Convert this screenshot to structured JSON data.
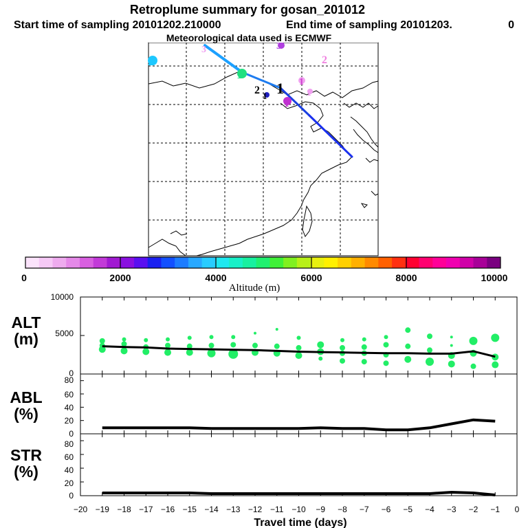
{
  "header": {
    "title": "Retroplume summary for gosan_201012",
    "start_label": "Start time of sampling 20101202.210000",
    "end_label": "End time of sampling 20101203.",
    "end_suffix": "0",
    "met_label": "Meteorological data used is ECMWF"
  },
  "colorbar": {
    "label": "Altitude (m)",
    "ticks": [
      "0",
      "2000",
      "4000",
      "6000",
      "8000",
      "10000"
    ],
    "colors": [
      "#fbe3fb",
      "#f6c9f6",
      "#eeabee",
      "#e589e8",
      "#d85fe0",
      "#c23ad8",
      "#a11ad2",
      "#8a10e0",
      "#5a10f0",
      "#1a20f0",
      "#1250ff",
      "#1c7cff",
      "#28a8ff",
      "#28ccff",
      "#1ee8f0",
      "#18f0c8",
      "#18f0a0",
      "#20f070",
      "#40f038",
      "#80f020",
      "#b8f018",
      "#e8f010",
      "#fff000",
      "#ffd000",
      "#ffb000",
      "#ff8a00",
      "#ff6000",
      "#ff3010",
      "#ff0030",
      "#ff0070",
      "#ff0098",
      "#f000b0",
      "#d000a8",
      "#a80098",
      "#7a0080"
    ]
  },
  "map": {
    "labels": [
      {
        "text": "2",
        "color": "#1ec8ff"
      },
      {
        "text": "3",
        "color": "#b040e0"
      },
      {
        "text": "3",
        "color": "#f0a0f0"
      },
      {
        "text": "2",
        "color": "#f080e0"
      },
      {
        "text": "1",
        "color": "#20e080"
      },
      {
        "text": "2",
        "color": "#000000"
      },
      {
        "text": "1",
        "color": "#000000"
      },
      {
        "text": "1",
        "color": "#c030d0"
      },
      {
        "text": "1",
        "color": "#f0a0f0"
      },
      {
        "text": "1",
        "color": "#d040d0"
      },
      {
        "text": "1",
        "color": "#000000"
      }
    ]
  },
  "chart_data": [
    {
      "type": "scatter",
      "name": "ALT",
      "ylabel_top": "ALT",
      "ylabel_unit": "(m)",
      "ylim": [
        0,
        10000
      ],
      "yticks": [
        "10000",
        "5000",
        "0"
      ],
      "line_color": "#000000",
      "dot_color": "#22ee66",
      "line": {
        "x": [
          -19,
          -18,
          -17,
          -16,
          -15,
          -14,
          -13,
          -12,
          -11,
          -10,
          -9,
          -8,
          -7,
          -6,
          -5,
          -4,
          -3,
          -2,
          -1
        ],
        "y": [
          3600,
          3500,
          3450,
          3300,
          3250,
          3200,
          3150,
          3100,
          3000,
          2900,
          2850,
          2800,
          2750,
          2700,
          2700,
          2650,
          2650,
          2950,
          2250
        ]
      },
      "points": [
        [
          -19,
          4300,
          4
        ],
        [
          -19,
          3700,
          4
        ],
        [
          -19,
          3200,
          5
        ],
        [
          -18,
          4500,
          3
        ],
        [
          -18,
          3900,
          4
        ],
        [
          -18,
          3000,
          5
        ],
        [
          -17,
          4400,
          3
        ],
        [
          -17,
          3500,
          4
        ],
        [
          -17,
          2900,
          5
        ],
        [
          -16,
          4500,
          3
        ],
        [
          -16,
          3700,
          4
        ],
        [
          -16,
          2800,
          5
        ],
        [
          -15,
          4700,
          3
        ],
        [
          -15,
          3600,
          4
        ],
        [
          -15,
          2800,
          5
        ],
        [
          -14,
          4800,
          3
        ],
        [
          -14,
          3700,
          4
        ],
        [
          -14,
          2700,
          6
        ],
        [
          -13,
          4800,
          3
        ],
        [
          -13,
          3800,
          4
        ],
        [
          -13,
          2600,
          7
        ],
        [
          -12,
          5300,
          2
        ],
        [
          -12,
          3700,
          4
        ],
        [
          -12,
          2800,
          5
        ],
        [
          -11,
          5800,
          2
        ],
        [
          -11,
          3600,
          4
        ],
        [
          -11,
          2700,
          5
        ],
        [
          -10,
          4700,
          3
        ],
        [
          -10,
          3400,
          4
        ],
        [
          -10,
          2400,
          5
        ],
        [
          -9,
          3800,
          5
        ],
        [
          -9,
          2900,
          5
        ],
        [
          -9,
          2000,
          3
        ],
        [
          -8,
          4400,
          3
        ],
        [
          -8,
          3400,
          4
        ],
        [
          -8,
          2700,
          4
        ],
        [
          -8,
          1700,
          4
        ],
        [
          -7,
          4500,
          3
        ],
        [
          -7,
          3500,
          4
        ],
        [
          -7,
          2700,
          4
        ],
        [
          -7,
          1600,
          4
        ],
        [
          -6,
          4800,
          3
        ],
        [
          -6,
          3800,
          4
        ],
        [
          -6,
          2500,
          4
        ],
        [
          -6,
          1400,
          4
        ],
        [
          -5,
          5700,
          4
        ],
        [
          -5,
          3600,
          4
        ],
        [
          -5,
          1900,
          5
        ],
        [
          -4,
          4900,
          4
        ],
        [
          -4,
          3100,
          4
        ],
        [
          -4,
          1600,
          6
        ],
        [
          -3,
          4800,
          2
        ],
        [
          -3,
          3700,
          2
        ],
        [
          -3,
          2400,
          5
        ],
        [
          -3,
          1300,
          5
        ],
        [
          -2,
          4300,
          6
        ],
        [
          -2,
          2700,
          5
        ],
        [
          -2,
          1000,
          4
        ],
        [
          -1,
          4700,
          6
        ],
        [
          -1,
          2200,
          5
        ],
        [
          -1,
          1200,
          5
        ]
      ]
    },
    {
      "type": "line",
      "name": "ABL",
      "ylabel_top": "ABL",
      "ylabel_unit": "(%)",
      "ylim": [
        0,
        90
      ],
      "yticks": [
        "80",
        "60",
        "40",
        "20",
        "0"
      ],
      "x": [
        -19,
        -18,
        -17,
        -16,
        -15,
        -14,
        -13,
        -12,
        -11,
        -10,
        -9,
        -8,
        -7,
        -6,
        -5,
        -4,
        -3,
        -2,
        -1
      ],
      "y": [
        9,
        9,
        9,
        9,
        9,
        8,
        8,
        8,
        8,
        8,
        9,
        8,
        8,
        6,
        6,
        9,
        15,
        21,
        19
      ]
    },
    {
      "type": "line",
      "name": "STR",
      "ylabel_top": "STR",
      "ylabel_unit": "(%)",
      "ylim": [
        0,
        90
      ],
      "yticks": [
        "80",
        "60",
        "40",
        "20",
        "0"
      ],
      "x": [
        -19,
        -18,
        -17,
        -16,
        -15,
        -14,
        -13,
        -12,
        -11,
        -10,
        -9,
        -8,
        -7,
        -6,
        -5,
        -4,
        -3,
        -2,
        -1
      ],
      "y": [
        4,
        4,
        4,
        4,
        4,
        3,
        3,
        3,
        3,
        3,
        3,
        3,
        3,
        3,
        3,
        3,
        5,
        4,
        1
      ]
    },
    {
      "type": "axis",
      "name": "x-axis",
      "xlabel": "Travel time (days)",
      "xlim": [
        -20,
        0
      ],
      "xticks": [
        "−20",
        "−19",
        "−18",
        "−17",
        "−16",
        "−15",
        "−14",
        "−13",
        "−12",
        "−11",
        "−10",
        "−9",
        "−8",
        "−7",
        "−6",
        "−5",
        "−4",
        "−3",
        "−2",
        "−1",
        "0"
      ]
    }
  ]
}
